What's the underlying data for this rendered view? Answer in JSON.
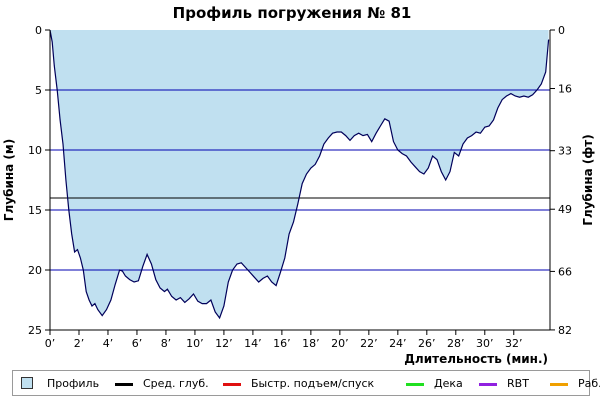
{
  "chart_data": {
    "type": "area",
    "title": "Профиль погружения № 81",
    "xlabel": "Длительность (мин.)",
    "ylabel_left": "Глубина (м)",
    "ylabel_right": "Глубина (фт)",
    "xlim": [
      0,
      34.5
    ],
    "ylim": [
      25,
      0
    ],
    "x_ticks": [
      0,
      2,
      4,
      6,
      8,
      10,
      12,
      14,
      16,
      18,
      20,
      22,
      24,
      26,
      28,
      30,
      32
    ],
    "x_tick_labels": [
      "0’",
      "2’",
      "4’",
      "6’",
      "8’",
      "10’",
      "12’",
      "14’",
      "16’",
      "18’",
      "20’",
      "22’",
      "24’",
      "26’",
      "28’",
      "30’",
      "32’"
    ],
    "y_ticks": [
      0,
      5,
      10,
      15,
      20,
      25
    ],
    "y_tick_labels": [
      "0",
      "5",
      "10",
      "15",
      "20",
      "25"
    ],
    "y_right_ticks": [
      0,
      16,
      33,
      49,
      66,
      82
    ],
    "y_right_tick_labels": [
      "0",
      "16",
      "33",
      "49",
      "66",
      "82"
    ],
    "grid": true,
    "average_depth": 14.0,
    "colors": {
      "area_fill": "#c0e0f0",
      "profile_line": "#00005a",
      "grid": "#0000b0",
      "average_line": "#000000",
      "fast_ascent": "#e01010",
      "deco": "#20e020",
      "rbt": "#9020e0",
      "work": "#f0a000"
    },
    "series": [
      {
        "name": "Профиль",
        "x": [
          0,
          0.15,
          0.3,
          0.5,
          0.7,
          0.9,
          1.1,
          1.3,
          1.5,
          1.7,
          1.9,
          2.1,
          2.3,
          2.5,
          2.7,
          2.9,
          3.1,
          3.3,
          3.6,
          3.9,
          4.2,
          4.5,
          4.8,
          5.0,
          5.2,
          5.5,
          5.8,
          6.1,
          6.4,
          6.7,
          7.0,
          7.3,
          7.6,
          7.9,
          8.1,
          8.4,
          8.7,
          9.0,
          9.3,
          9.6,
          9.9,
          10.2,
          10.5,
          10.8,
          11.1,
          11.4,
          11.7,
          12.0,
          12.3,
          12.6,
          12.9,
          13.2,
          13.5,
          13.8,
          14.1,
          14.4,
          14.7,
          15.0,
          15.3,
          15.6,
          15.9,
          16.2,
          16.5,
          16.8,
          17.1,
          17.4,
          17.7,
          18.0,
          18.3,
          18.6,
          18.9,
          19.2,
          19.5,
          19.8,
          20.1,
          20.4,
          20.7,
          21.0,
          21.3,
          21.6,
          21.9,
          22.2,
          22.5,
          22.8,
          23.1,
          23.4,
          23.7,
          24.0,
          24.3,
          24.6,
          24.9,
          25.2,
          25.5,
          25.8,
          26.1,
          26.4,
          26.7,
          27.0,
          27.3,
          27.6,
          27.9,
          28.2,
          28.5,
          28.8,
          29.1,
          29.4,
          29.7,
          30.0,
          30.3,
          30.6,
          30.9,
          31.2,
          31.5,
          31.8,
          32.1,
          32.4,
          32.7,
          33.0,
          33.3,
          33.6,
          33.9,
          34.2,
          34.4
        ],
        "depth": [
          0,
          1.0,
          3.0,
          5.0,
          7.5,
          9.5,
          12.5,
          15.0,
          17.0,
          18.5,
          18.3,
          19.0,
          20.0,
          21.8,
          22.5,
          23.0,
          22.8,
          23.3,
          23.8,
          23.3,
          22.5,
          21.2,
          20.0,
          20.1,
          20.5,
          20.8,
          21.0,
          20.9,
          19.7,
          18.7,
          19.5,
          20.8,
          21.5,
          21.8,
          21.6,
          22.2,
          22.5,
          22.3,
          22.7,
          22.4,
          22.0,
          22.6,
          22.8,
          22.8,
          22.5,
          23.5,
          24.0,
          23.0,
          21.0,
          20.0,
          19.5,
          19.4,
          19.8,
          20.2,
          20.6,
          21.0,
          20.7,
          20.5,
          21.0,
          21.3,
          20.2,
          19.0,
          17.0,
          16.0,
          14.5,
          12.8,
          12.0,
          11.5,
          11.2,
          10.5,
          9.5,
          9.0,
          8.6,
          8.5,
          8.5,
          8.8,
          9.2,
          8.8,
          8.6,
          8.8,
          8.7,
          9.3,
          8.6,
          8.0,
          7.4,
          7.6,
          9.3,
          10.0,
          10.3,
          10.5,
          11.0,
          11.4,
          11.8,
          12.0,
          11.5,
          10.5,
          10.8,
          11.8,
          12.5,
          11.8,
          10.2,
          10.5,
          9.5,
          9.0,
          8.8,
          8.5,
          8.6,
          8.1,
          8.0,
          7.5,
          6.5,
          5.8,
          5.5,
          5.3,
          5.5,
          5.6,
          5.5,
          5.6,
          5.4,
          5.0,
          4.5,
          3.5,
          0.8
        ]
      }
    ],
    "legend": [
      {
        "key": "profile",
        "label": "Профиль",
        "style": "box",
        "color": "#c0e0f0"
      },
      {
        "key": "avg",
        "label": "Сред. глуб.",
        "style": "line",
        "color": "#000000"
      },
      {
        "key": "fast",
        "label": "Быстр. подъем/спуск",
        "style": "line",
        "color": "#e01010"
      },
      {
        "key": "deco",
        "label": "Дека",
        "style": "line",
        "color": "#20e020"
      },
      {
        "key": "rbt",
        "label": "RBT",
        "style": "line",
        "color": "#9020e0"
      },
      {
        "key": "work",
        "label": "Раб.",
        "style": "line",
        "color": "#f0a000"
      }
    ]
  }
}
